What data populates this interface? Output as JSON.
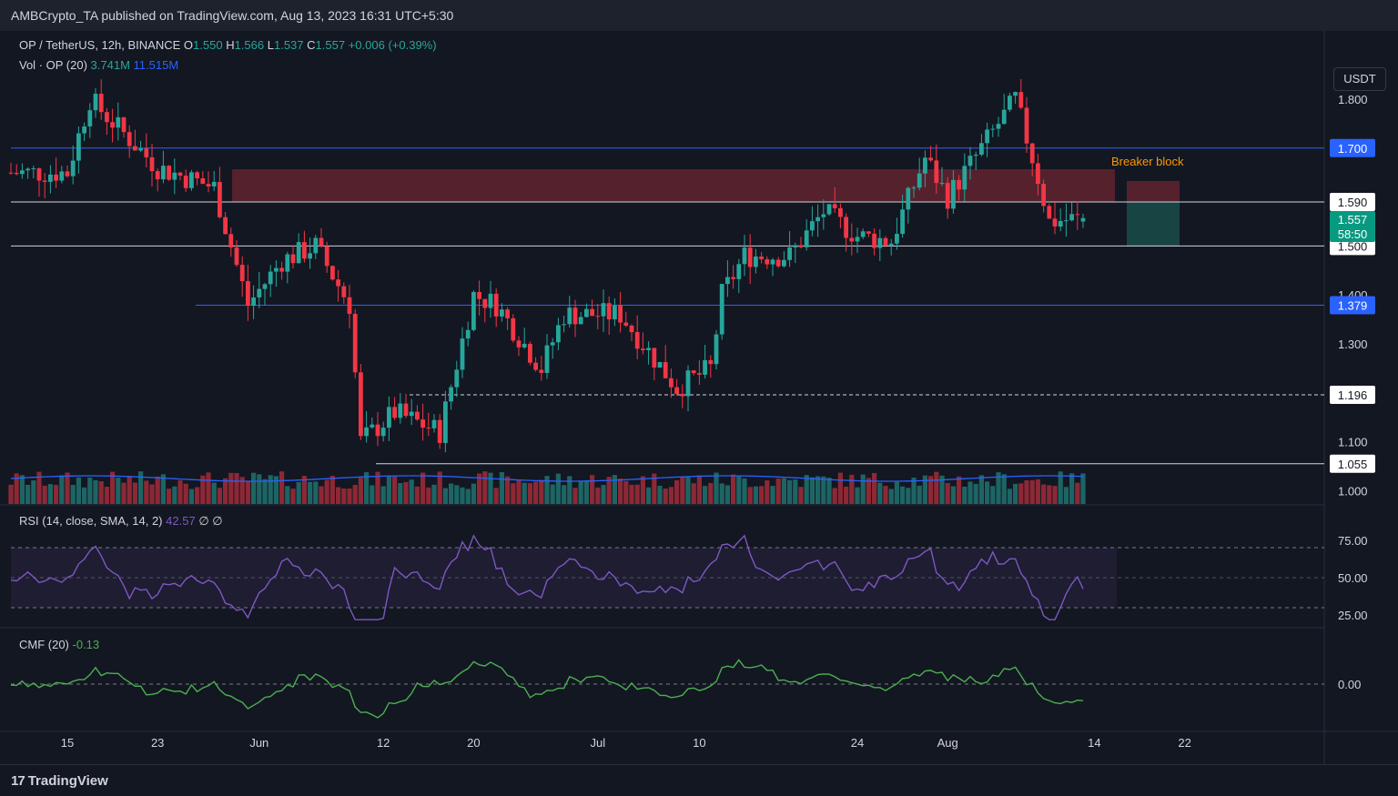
{
  "header": {
    "publisher": "AMBCrypto_TA published on TradingView.com, Aug 13, 2023 16:31 UTC+5:30"
  },
  "footer": {
    "brand": "TradingView",
    "brand_mark": "17"
  },
  "price_pane": {
    "symbol": "OP / TetherUS, 12h, BINANCE",
    "ohlc": {
      "o_label": "O",
      "o": "1.550",
      "h_label": "H",
      "h": "1.566",
      "l_label": "L",
      "l": "1.537",
      "c_label": "C",
      "c": "1.557",
      "change": "+0.006 (+0.39%)"
    },
    "vol_label": "Vol · OP (20)",
    "vol_value": "3.741M",
    "vol_ma": "11.515M",
    "currency": "USDT",
    "annotation": "Breaker block",
    "last_price": "1.557",
    "countdown": "58:50",
    "y_ticks": [
      "1.800",
      "1.400",
      "1.300",
      "1.100",
      "1.000"
    ],
    "level_labels": [
      {
        "value": "1.700",
        "style": "blue"
      },
      {
        "value": "1.590",
        "style": "white"
      },
      {
        "value": "1.500",
        "style": "white"
      },
      {
        "value": "1.379",
        "style": "blue"
      },
      {
        "value": "1.196",
        "style": "white"
      },
      {
        "value": "1.055",
        "style": "white"
      }
    ]
  },
  "rsi_pane": {
    "label": "RSI (14, close, SMA, 14, 2)",
    "value": "42.57",
    "extra": "∅ ∅",
    "ticks": [
      "75.00",
      "50.00",
      "25.00"
    ]
  },
  "cmf_pane": {
    "label": "CMF (20)",
    "value": "-0.13",
    "ticks": [
      "0.00"
    ]
  },
  "x_axis": {
    "labels": [
      "15",
      "23",
      "Jun",
      "12",
      "20",
      "Jul",
      "10",
      "24",
      "Aug",
      "14",
      "22"
    ]
  },
  "colors": {
    "up": "#26a69a",
    "down": "#f23645",
    "blue_level": "#2962ff",
    "rsi": "#7e57c2",
    "cmf": "#4caf50",
    "breaker": "#ff9800",
    "background": "#131722"
  },
  "chart_data": {
    "type": "candlestick",
    "x_axis": "date, 12h candles, May 10 – Aug 13 2023",
    "ylim": [
      0.97,
      1.85
    ],
    "levels": [
      1.7,
      1.59,
      1.5,
      1.379,
      1.196,
      1.055
    ],
    "breaker_block": {
      "low": 1.59,
      "high": 1.665
    },
    "ohlc_anchors": [
      {
        "date": "2023-05-10",
        "close": 1.65
      },
      {
        "date": "2023-05-15",
        "close": 1.65
      },
      {
        "date": "2023-05-17",
        "close": 1.8
      },
      {
        "date": "2023-05-23",
        "close": 1.66
      },
      {
        "date": "2023-05-28",
        "close": 1.62
      },
      {
        "date": "2023-05-31",
        "close": 1.38
      },
      {
        "date": "2023-06-03",
        "close": 1.47
      },
      {
        "date": "2023-06-06",
        "close": 1.5
      },
      {
        "date": "2023-06-09",
        "close": 1.38
      },
      {
        "date": "2023-06-10",
        "close": 1.1
      },
      {
        "date": "2023-06-13",
        "close": 1.16
      },
      {
        "date": "2023-06-17",
        "close": 1.12
      },
      {
        "date": "2023-06-20",
        "close": 1.4
      },
      {
        "date": "2023-06-22",
        "close": 1.38
      },
      {
        "date": "2023-06-26",
        "close": 1.25
      },
      {
        "date": "2023-06-28",
        "close": 1.36
      },
      {
        "date": "2023-07-03",
        "close": 1.36
      },
      {
        "date": "2023-07-08",
        "close": 1.21
      },
      {
        "date": "2023-07-11",
        "close": 1.25
      },
      {
        "date": "2023-07-12",
        "close": 1.4
      },
      {
        "date": "2023-07-14",
        "close": 1.48
      },
      {
        "date": "2023-07-18",
        "close": 1.48
      },
      {
        "date": "2023-07-21",
        "close": 1.57
      },
      {
        "date": "2023-07-24",
        "close": 1.52
      },
      {
        "date": "2023-07-27",
        "close": 1.51
      },
      {
        "date": "2023-07-30",
        "close": 1.68
      },
      {
        "date": "2023-08-01",
        "close": 1.6
      },
      {
        "date": "2023-08-04",
        "close": 1.7
      },
      {
        "date": "2023-08-07",
        "close": 1.8
      },
      {
        "date": "2023-08-09",
        "close": 1.64
      },
      {
        "date": "2023-08-10",
        "close": 1.55
      },
      {
        "date": "2023-08-13",
        "close": 1.557
      }
    ],
    "rsi": {
      "ylim": [
        0,
        100
      ],
      "bands": [
        30,
        50,
        70
      ],
      "last": 42.57
    },
    "cmf": {
      "zero": 0.0,
      "last": -0.13
    },
    "volume_ma_last": "11.515M"
  }
}
